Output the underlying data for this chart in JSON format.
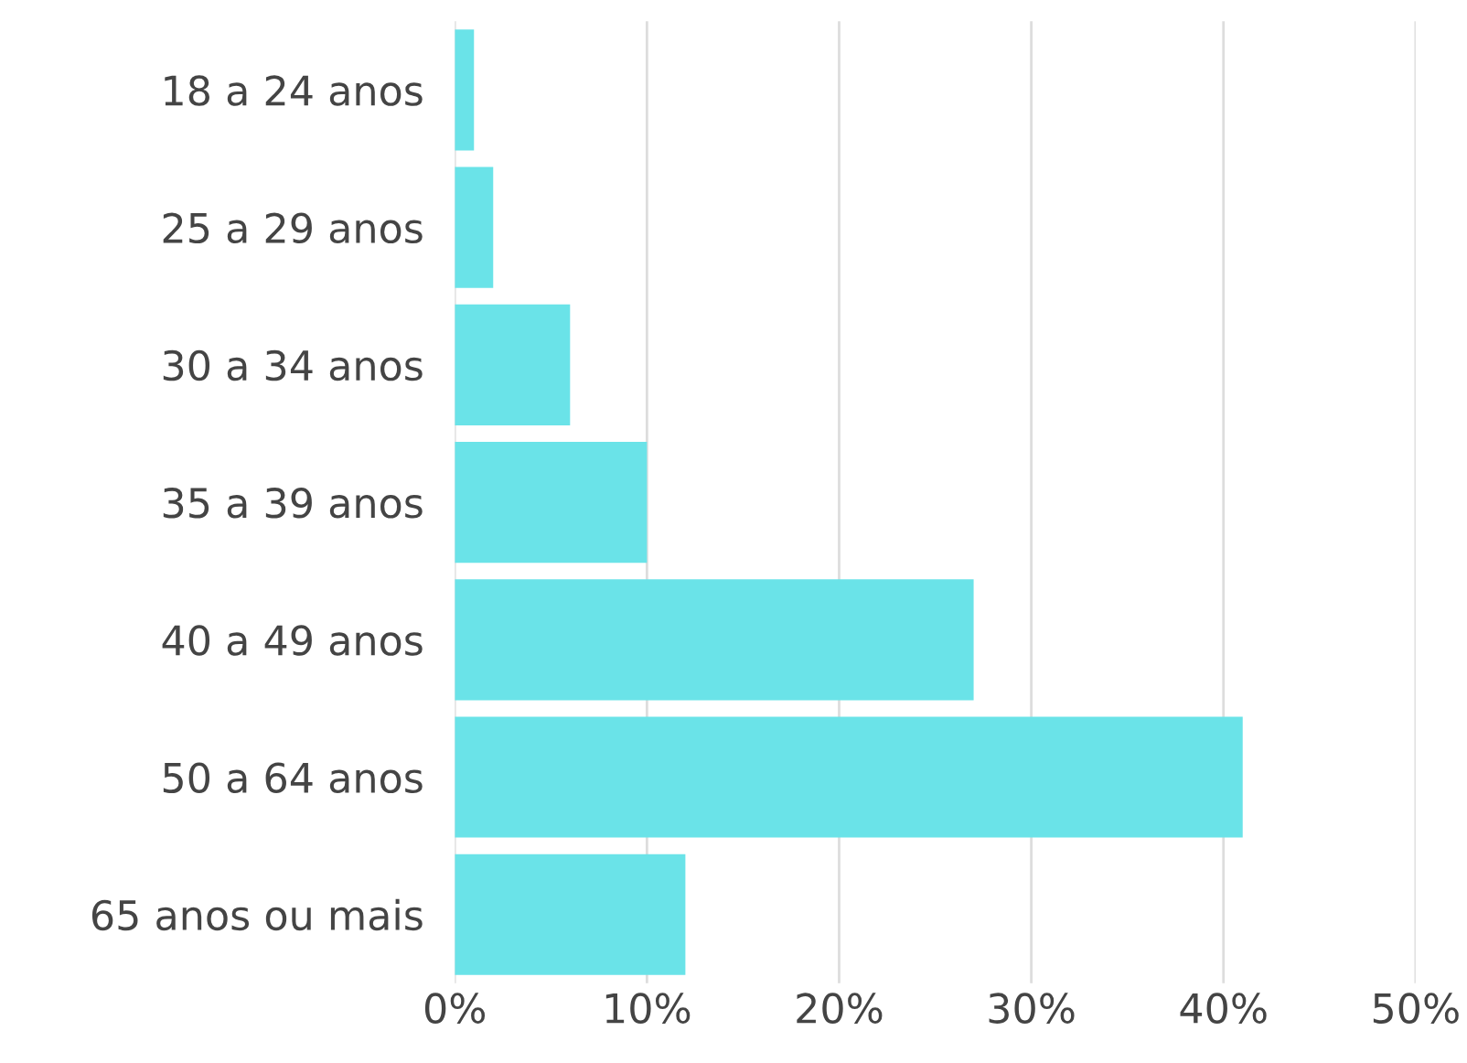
{
  "chart_data": {
    "type": "bar",
    "orientation": "horizontal",
    "categories": [
      "18 a 24 anos",
      "25 a 29 anos",
      "30 a 34 anos",
      "35 a 39 anos",
      "40 a 49 anos",
      "50 a 64 anos",
      "65 anos ou mais"
    ],
    "values": [
      1,
      2,
      6,
      10,
      27,
      41,
      12
    ],
    "color": "#6ae3e8",
    "xlim": [
      0,
      50
    ],
    "xticks": [
      {
        "value": 0,
        "label": "0%"
      },
      {
        "value": 10,
        "label": "10%"
      },
      {
        "value": 20,
        "label": "20%"
      },
      {
        "value": 30,
        "label": "30%"
      },
      {
        "value": 40,
        "label": "40%"
      },
      {
        "value": 50,
        "label": "50%"
      }
    ],
    "grid": "x"
  }
}
